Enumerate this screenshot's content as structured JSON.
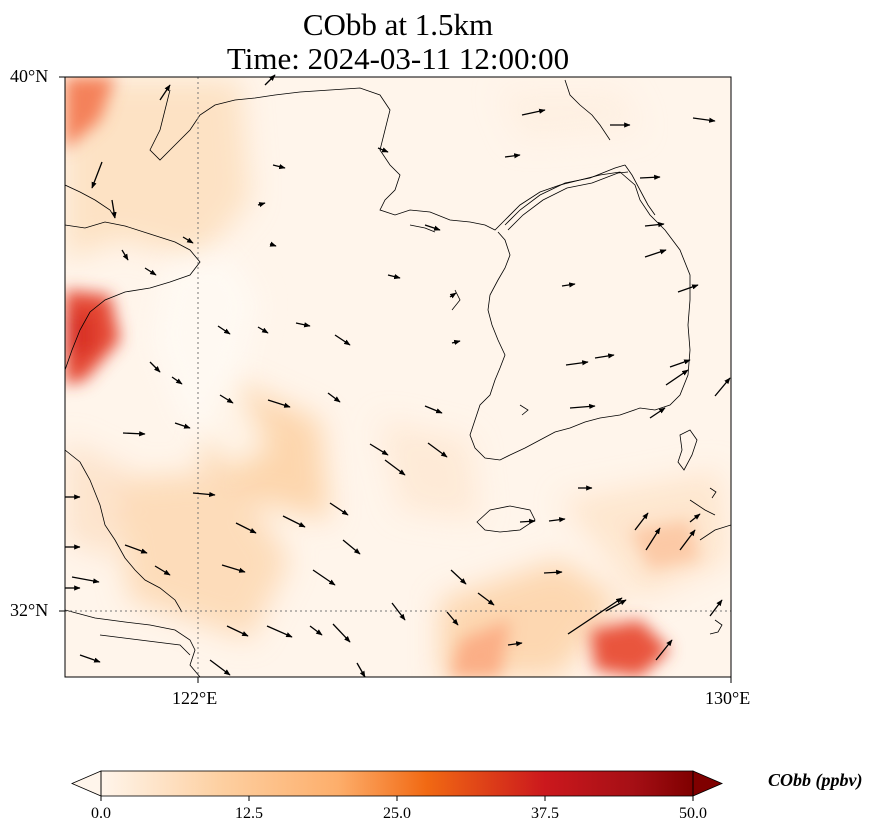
{
  "title": {
    "line1": "CObb at 1.5km",
    "line2": "Time: 2024-03-11 12:00:00"
  },
  "map": {
    "lon_range": [
      120,
      130
    ],
    "lat_range": [
      31,
      40
    ],
    "gridlines": {
      "lon": [
        122
      ],
      "lat": [
        32
      ],
      "style": "dotted"
    },
    "x_ticks": [
      {
        "lon": 122,
        "label": "122°E"
      },
      {
        "lon": 130,
        "label": "130°E"
      }
    ],
    "y_ticks": [
      {
        "lat": 40,
        "label": "40°N"
      },
      {
        "lat": 32,
        "label": "32°N"
      }
    ],
    "land_color": "#fff5eb",
    "coastline_color": "#000000"
  },
  "colorbar": {
    "label": "CObb (ppbv)",
    "min": 0.0,
    "max": 50.0,
    "extend": "both",
    "colormap": [
      "#fff5eb",
      "#fdd0a2",
      "#fd8d3c",
      "#d94801",
      "#a50f15",
      "#7f0000"
    ],
    "ticks": [
      {
        "value": 0.0,
        "label": "0.0"
      },
      {
        "value": 12.5,
        "label": "12.5"
      },
      {
        "value": 25.0,
        "label": "25.0"
      },
      {
        "value": 37.5,
        "label": "37.5"
      },
      {
        "value": 50.0,
        "label": "50.0"
      }
    ]
  }
}
